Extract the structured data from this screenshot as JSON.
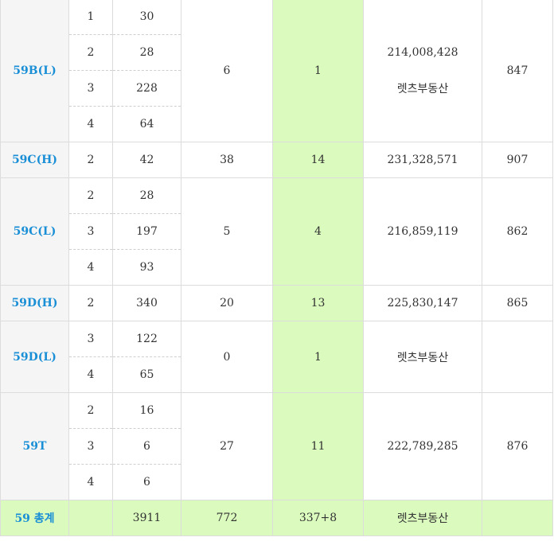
{
  "rows": {
    "r59B": {
      "type": "59B(L)",
      "c3": "6",
      "c4": "1",
      "c5a": "214,008,428",
      "c5b": "렛츠부동산",
      "c6": "847",
      "sub": [
        {
          "a": "1",
          "b": "30"
        },
        {
          "a": "2",
          "b": "28"
        },
        {
          "a": "3",
          "b": "228"
        },
        {
          "a": "4",
          "b": "64"
        }
      ]
    },
    "r59CH": {
      "type": "59C(H)",
      "a": "2",
      "b": "42",
      "c3": "38",
      "c4": "14",
      "c5": "231,328,571",
      "c6": "907"
    },
    "r59CL": {
      "type": "59C(L)",
      "c3": "5",
      "c4": "4",
      "c5": "216,859,119",
      "c6": "862",
      "sub": [
        {
          "a": "2",
          "b": "28"
        },
        {
          "a": "3",
          "b": "197"
        },
        {
          "a": "4",
          "b": "93"
        }
      ]
    },
    "r59DH": {
      "type": "59D(H)",
      "a": "2",
      "b": "340",
      "c3": "20",
      "c4": "13",
      "c5": "225,830,147",
      "c6": "865"
    },
    "r59DL": {
      "type": "59D(L)",
      "c3": "0",
      "c4": "1",
      "c5": "렛츠부동산",
      "c6": "",
      "sub": [
        {
          "a": "3",
          "b": "122"
        },
        {
          "a": "4",
          "b": "65"
        }
      ]
    },
    "r59T": {
      "type": "59T",
      "c3": "27",
      "c4": "11",
      "c5": "222,789,285",
      "c6": "876",
      "sub": [
        {
          "a": "2",
          "b": "16"
        },
        {
          "a": "3",
          "b": "6"
        },
        {
          "a": "4",
          "b": "6"
        }
      ]
    },
    "total": {
      "type": "59 총계",
      "a": "",
      "b": "3911",
      "c3": "772",
      "c4": "337+8",
      "c5": "렛츠부동산",
      "c6": ""
    }
  }
}
